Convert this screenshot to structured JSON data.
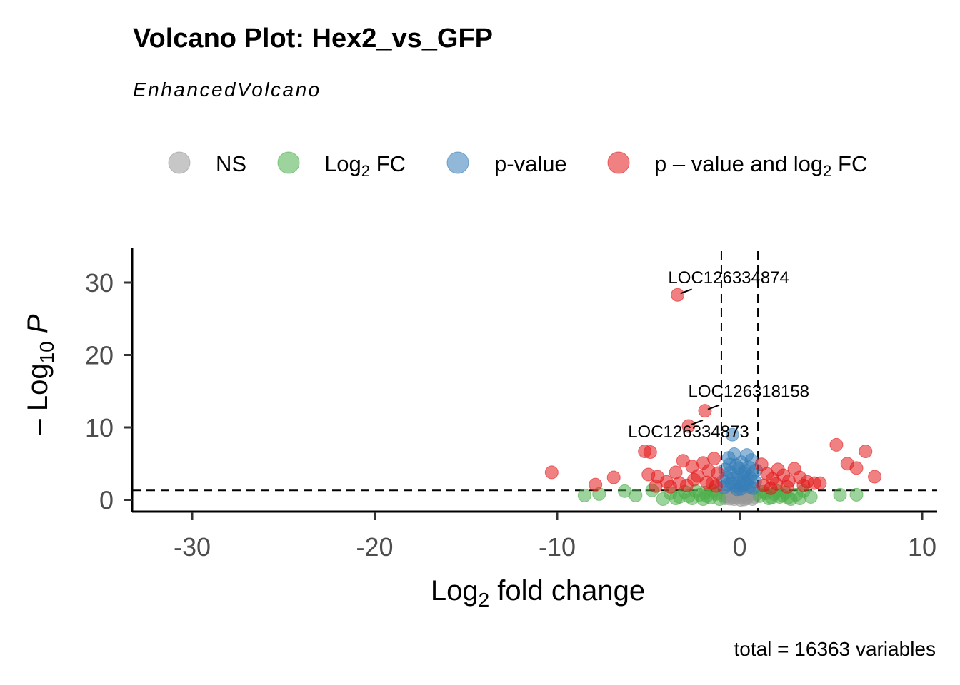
{
  "chart_data": {
    "type": "scatter",
    "title": "Volcano Plot: Hex2_vs_GFP",
    "subtitle": "EnhancedVolcano",
    "caption": "total = 16363 variables",
    "xlabel": {
      "base": "Log",
      "sub": "2",
      "rest": " fold change"
    },
    "ylabel": {
      "prefix": "– Log",
      "sub": "10",
      "italic": " P"
    },
    "xlim": [
      -33.5,
      11
    ],
    "ylim": [
      -1.5,
      35
    ],
    "x_ticks": [
      -30,
      -20,
      -10,
      0,
      10
    ],
    "x_tick_labels": [
      "-30",
      "-20",
      "-10",
      "0",
      "10"
    ],
    "y_ticks": [
      0,
      10,
      20,
      30
    ],
    "y_tick_labels": [
      "0",
      "10",
      "20",
      "30"
    ],
    "thresholds": {
      "fc_cutoff": [
        -1,
        1
      ],
      "p_cutoff": 1.3
    },
    "grid": false,
    "legend_position": "top",
    "colors": {
      "NS": "#999999",
      "FC": "#4daf4a",
      "P": "#377eb8",
      "BOTH": "#e41a1c"
    },
    "legend": [
      {
        "key": "NS",
        "text": "NS"
      },
      {
        "key": "FC",
        "base": "Log",
        "sub": "2",
        "rest": " FC"
      },
      {
        "key": "P",
        "text": "p-value"
      },
      {
        "key": "BOTH",
        "base": "p – value and log",
        "sub": "2",
        "rest": " FC"
      }
    ],
    "series": [
      {
        "name": "NS",
        "points": [
          [
            -0.8,
            0.2
          ],
          [
            -0.6,
            0.5
          ],
          [
            -0.4,
            0.9
          ],
          [
            -0.2,
            0.3
          ],
          [
            0,
            0.6
          ],
          [
            0.2,
            1.1
          ],
          [
            0.4,
            0.2
          ],
          [
            0.6,
            0.8
          ],
          [
            0.8,
            0.4
          ],
          [
            -0.7,
            1
          ],
          [
            -0.3,
            0.1
          ],
          [
            0.1,
            0.4
          ],
          [
            0.3,
            0.7
          ],
          [
            0.5,
            1.2
          ],
          [
            0.7,
            0.1
          ],
          [
            -0.5,
            0.7
          ],
          [
            -0.1,
            1.2
          ],
          [
            0.05,
            0
          ],
          [
            -0.9,
            0.6
          ],
          [
            0.9,
            0.9
          ],
          [
            -0.35,
            0.35
          ],
          [
            0.25,
            0.05
          ],
          [
            -0.15,
            0.75
          ],
          [
            0.45,
            0.55
          ],
          [
            0.65,
            1
          ],
          [
            -0.55,
            0.15
          ],
          [
            0.15,
            0.9
          ],
          [
            -0.25,
            1.1
          ],
          [
            0.35,
            0.3
          ],
          [
            -0.75,
            0.45
          ]
        ]
      },
      {
        "name": "FC",
        "points": [
          [
            -8.5,
            0.6
          ],
          [
            -7.7,
            0.8
          ],
          [
            -6.3,
            1.2
          ],
          [
            -5.7,
            0.6
          ],
          [
            -4.8,
            1.3
          ],
          [
            -4.2,
            0.1
          ],
          [
            -3.8,
            0.9
          ],
          [
            -3.3,
            0.4
          ],
          [
            -3,
            1.1
          ],
          [
            -2.6,
            0.2
          ],
          [
            -2.2,
            0.7
          ],
          [
            -1.9,
            1
          ],
          [
            -1.6,
            0.3
          ],
          [
            -1.3,
            0.8
          ],
          [
            -1.1,
            0.1
          ],
          [
            1.1,
            0.5
          ],
          [
            1.3,
            1.1
          ],
          [
            1.6,
            0.2
          ],
          [
            1.9,
            0.8
          ],
          [
            2.2,
            0.4
          ],
          [
            2.5,
            1
          ],
          [
            2.8,
            0.1
          ],
          [
            3.1,
            0.7
          ],
          [
            3.5,
            1.2
          ],
          [
            3.9,
            0.4
          ],
          [
            5.5,
            0.7
          ],
          [
            6.4,
            0.7
          ],
          [
            -2.8,
            0.5
          ],
          [
            -2.4,
            1.2
          ],
          [
            -1.8,
            0.5
          ],
          [
            -1.45,
            1.2
          ],
          [
            1.45,
            0.9
          ],
          [
            1.75,
            0.3
          ],
          [
            2.05,
            1.2
          ],
          [
            2.35,
            0.6
          ],
          [
            2.65,
            0.3
          ],
          [
            3.3,
            0.2
          ],
          [
            -3.5,
            0.2
          ],
          [
            -2,
            0.1
          ]
        ]
      },
      {
        "name": "P",
        "points": [
          [
            -0.4,
            9
          ],
          [
            -0.3,
            6.3
          ],
          [
            0.4,
            6.2
          ],
          [
            -0.6,
            5.8
          ],
          [
            0.1,
            5.2
          ],
          [
            -0.2,
            4.8
          ],
          [
            0.5,
            4.5
          ],
          [
            -0.8,
            4.2
          ],
          [
            0.3,
            4
          ],
          [
            -0.5,
            3.8
          ],
          [
            0.7,
            3.6
          ],
          [
            -0.1,
            3.5
          ],
          [
            0.2,
            3.3
          ],
          [
            -0.7,
            3.1
          ],
          [
            0.6,
            3
          ],
          [
            -0.35,
            2.9
          ],
          [
            0.45,
            2.8
          ],
          [
            -0.9,
            2.6
          ],
          [
            0.85,
            2.5
          ],
          [
            0,
            2.4
          ],
          [
            -0.45,
            2.3
          ],
          [
            0.35,
            2.2
          ],
          [
            -0.65,
            2.1
          ],
          [
            0.15,
            2
          ],
          [
            -0.25,
            1.9
          ],
          [
            0.55,
            1.8
          ],
          [
            -0.85,
            1.7
          ],
          [
            0.75,
            1.6
          ],
          [
            0.05,
            1.5
          ],
          [
            -0.15,
            1.45
          ],
          [
            0.25,
            3.7
          ],
          [
            -0.55,
            4.9
          ],
          [
            0.65,
            5.5
          ],
          [
            -0.05,
            4.4
          ],
          [
            0.9,
            4.1
          ]
        ]
      },
      {
        "name": "BOTH",
        "points": [
          [
            -3.4,
            28.3
          ],
          [
            -1.9,
            12.3
          ],
          [
            -2.8,
            10.2
          ],
          [
            -5.2,
            6.7
          ],
          [
            -4.9,
            6.6
          ],
          [
            -10.3,
            3.8
          ],
          [
            -7.9,
            2.1
          ],
          [
            -6.9,
            3.1
          ],
          [
            -5,
            3.5
          ],
          [
            -4.5,
            3.2
          ],
          [
            -4,
            2.5
          ],
          [
            -3.5,
            3.8
          ],
          [
            -3.1,
            5.4
          ],
          [
            -2.6,
            4.6
          ],
          [
            -2.3,
            3.3
          ],
          [
            -2,
            5.1
          ],
          [
            -1.7,
            4
          ],
          [
            -1.4,
            5.7
          ],
          [
            -1.2,
            3.7
          ],
          [
            -3.8,
            1.8
          ],
          [
            -2.9,
            2
          ],
          [
            -1.5,
            2.3
          ],
          [
            1.2,
            4.9
          ],
          [
            1.5,
            3.6
          ],
          [
            1.8,
            2.9
          ],
          [
            2.1,
            4.2
          ],
          [
            2.4,
            3.4
          ],
          [
            2.7,
            2.6
          ],
          [
            3,
            4.3
          ],
          [
            3.3,
            3.1
          ],
          [
            3.7,
            2.5
          ],
          [
            4.1,
            2.3
          ],
          [
            4.4,
            2.3
          ],
          [
            5.3,
            7.6
          ],
          [
            6.9,
            6.7
          ],
          [
            5.9,
            5
          ],
          [
            6.4,
            4.4
          ],
          [
            7.4,
            3.2
          ],
          [
            1.3,
            2
          ],
          [
            2,
            2.2
          ],
          [
            -4.6,
            1.9
          ],
          [
            -3.3,
            2.3
          ],
          [
            -2.5,
            2.8
          ],
          [
            -1.8,
            2.4
          ],
          [
            -1.3,
            1.9
          ],
          [
            1.7,
            1.6
          ],
          [
            2.6,
            1.8
          ],
          [
            3.5,
            2
          ]
        ]
      }
    ],
    "labels": [
      {
        "text": "LOC126334874",
        "point": [
          -3.4,
          28.3
        ],
        "label_at": [
          -0.6,
          29.9
        ]
      },
      {
        "text": "LOC126318158",
        "point": [
          -1.9,
          12.3
        ],
        "label_at": [
          0.5,
          14.2
        ]
      },
      {
        "text": "LOC126334873",
        "point": [
          -2.8,
          10.2
        ],
        "label_at": [
          -2.8,
          8.6
        ]
      }
    ]
  }
}
